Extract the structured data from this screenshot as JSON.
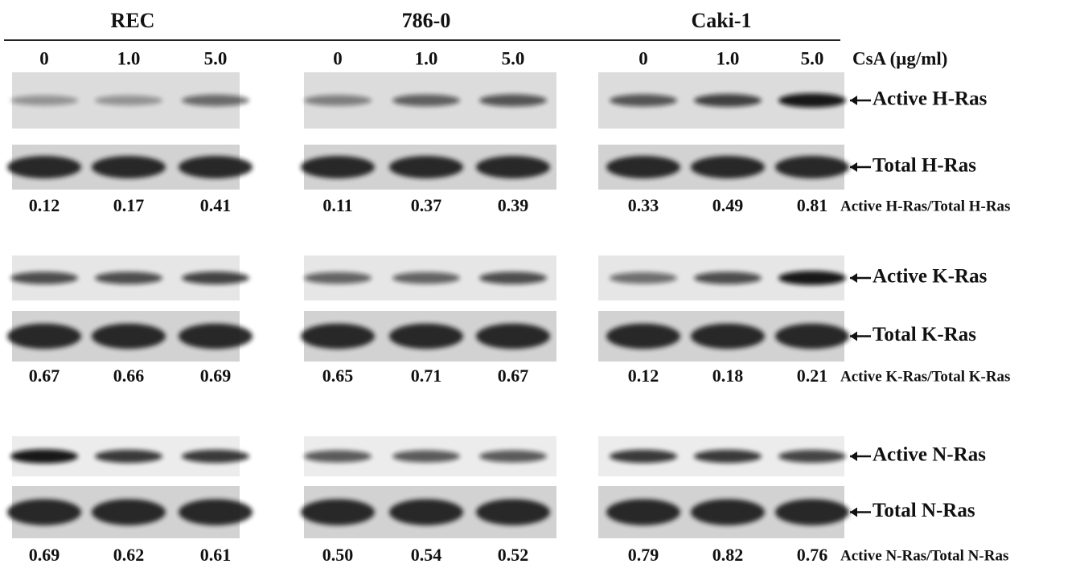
{
  "groups": [
    "REC",
    "786-0",
    "Caki-1"
  ],
  "doses": [
    "0",
    "1.0",
    "5.0"
  ],
  "dose_label": "CsA (μg/ml)",
  "blots": [
    {
      "active": "Active H-Ras",
      "total": "Total H-Ras",
      "ratio_label": "Active H-Ras/Total H-Ras",
      "ratios": [
        [
          "0.12",
          "0.17",
          "0.41"
        ],
        [
          "0.11",
          "0.37",
          "0.39"
        ],
        [
          "0.33",
          "0.49",
          "0.81"
        ]
      ]
    },
    {
      "active": "Active K-Ras",
      "total": "Total K-Ras",
      "ratio_label": "Active K-Ras/Total K-Ras",
      "ratios": [
        [
          "0.67",
          "0.66",
          "0.69"
        ],
        [
          "0.65",
          "0.71",
          "0.67"
        ],
        [
          "0.12",
          "0.18",
          "0.21"
        ]
      ]
    },
    {
      "active": "Active N-Ras",
      "total": "Total N-Ras",
      "ratio_label": "Active N-Ras/Total N-Ras",
      "ratios": [
        [
          "0.69",
          "0.62",
          "0.61"
        ],
        [
          "0.50",
          "0.54",
          "0.52"
        ],
        [
          "0.79",
          "0.82",
          "0.76"
        ]
      ]
    }
  ]
}
